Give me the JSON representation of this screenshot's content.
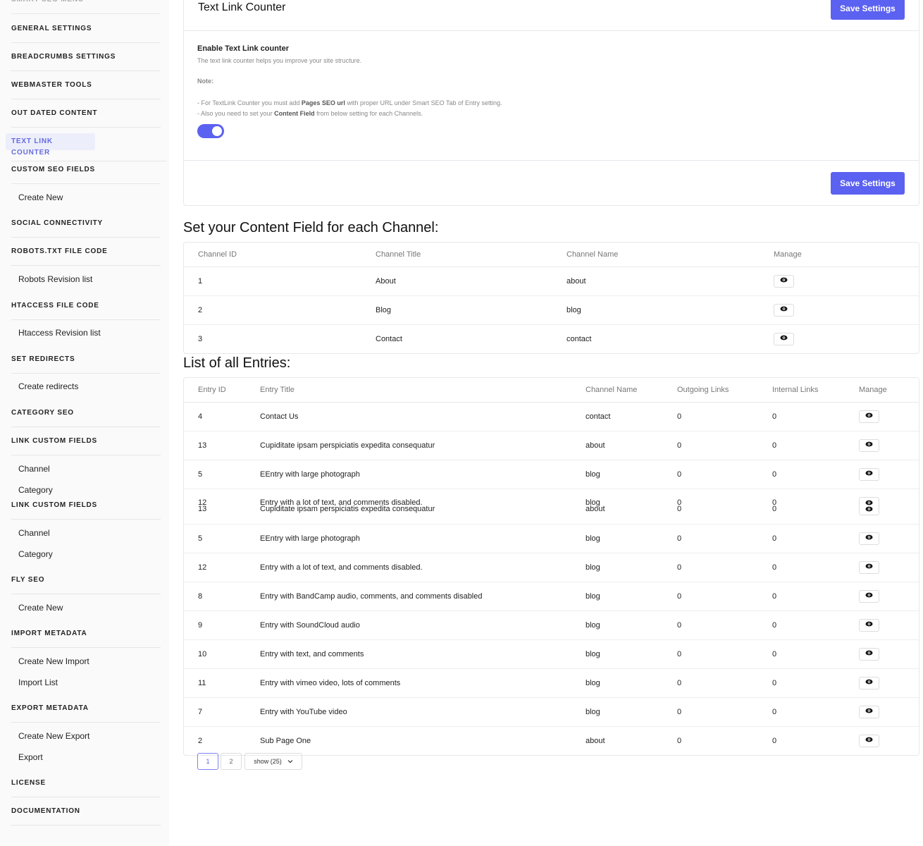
{
  "sidebar": {
    "items": [
      "SMART SEO MENU",
      "GENERAL SETTINGS",
      "BREADCRUMBS SETTINGS",
      "WEBMASTER TOOLS",
      "OUT DATED CONTENT",
      "TEXT LINK COUNTER",
      "CUSTOM SEO FIELDS",
      "Create New",
      "SOCIAL CONNECTIVITY",
      "ROBOTS.TXT FILE CODE",
      "Robots Revision list",
      "HTACCESS FILE CODE",
      "Htaccess Revision list",
      "SET REDIRECTS",
      "Create redirects",
      "CATEGORY SEO",
      "LINK CUSTOM FIELDS",
      "Channel",
      "Category",
      "LINK CUSTOM FIELDS",
      "Channel",
      "Category",
      "FLY SEO",
      "Create New",
      "IMPORT METADATA",
      "Create New Import",
      "Import List",
      "EXPORT METADATA",
      "Create New Export",
      "Export",
      "LICENSE",
      "DOCUMENTATION"
    ]
  },
  "header": {
    "title": "Text Link Counter",
    "save_button": "Save Settings"
  },
  "settings": {
    "label": "Enable Text Link counter",
    "description": "The text link counter helps you improve your site structure.",
    "note_label": "Note:",
    "note_lines": [
      [
        "- For TextLink Counter you must add ",
        "Pages SEO url",
        " with proper URL under Smart SEO Tab of Entry setting."
      ],
      [
        "- Also you need to set your ",
        "Content Field",
        " from below setting for each Channels."
      ]
    ],
    "save_button": "Save Settings"
  },
  "channels": {
    "heading": "Set your Content Field for each Channel:",
    "columns": [
      "Channel ID",
      "Channel Title",
      "Channel Name",
      "Manage"
    ],
    "rows": [
      [
        "1",
        "About",
        "about"
      ],
      [
        "2",
        "Blog",
        "blog"
      ],
      [
        "3",
        "Contact",
        "contact"
      ]
    ]
  },
  "entries": {
    "heading": "List of all Entries:",
    "columns": [
      "Entry ID",
      "Entry Title",
      "Channel Name",
      "Outgoing Links",
      "Internal Links",
      "Manage"
    ],
    "rows": [
      [
        "4",
        "Contact Us",
        "contact",
        "0",
        "0"
      ],
      [
        "13",
        "Cupiditate ipsam perspiciatis expedita consequatur",
        "about",
        "0",
        "0"
      ],
      [
        "5",
        "EEntry with large photograph",
        "blog",
        "0",
        "0"
      ],
      [
        [
          "12",
          "Entry with a lot of text, and comments disabled.",
          "blog",
          "0",
          "0"
        ],
        [
          "13",
          "Cupiditate ipsam perspiciatis expedita consequatur",
          "about",
          "0",
          "0"
        ]
      ],
      [
        "5",
        "EEntry with large photograph",
        "blog",
        "0",
        "0"
      ],
      [
        "12",
        "Entry with a lot of text, and comments disabled.",
        "blog",
        "0",
        "0"
      ],
      [
        "8",
        "Entry with BandCamp audio, comments, and comments disabled",
        "blog",
        "0",
        "0"
      ],
      [
        "9",
        "Entry with SoundCloud audio",
        "blog",
        "0",
        "0"
      ],
      [
        "10",
        "Entry with text, and comments",
        "blog",
        "0",
        "0"
      ],
      [
        "11",
        "Entry with vimeo video, lots of comments",
        "blog",
        "0",
        "0"
      ],
      [
        "7",
        "Entry with YouTube video",
        "blog",
        "0",
        "0"
      ],
      [
        "2",
        "Sub Page One",
        "about",
        "0",
        "0"
      ]
    ]
  },
  "pagination": {
    "pages": [
      "1",
      "2"
    ],
    "show": "show (25)"
  }
}
